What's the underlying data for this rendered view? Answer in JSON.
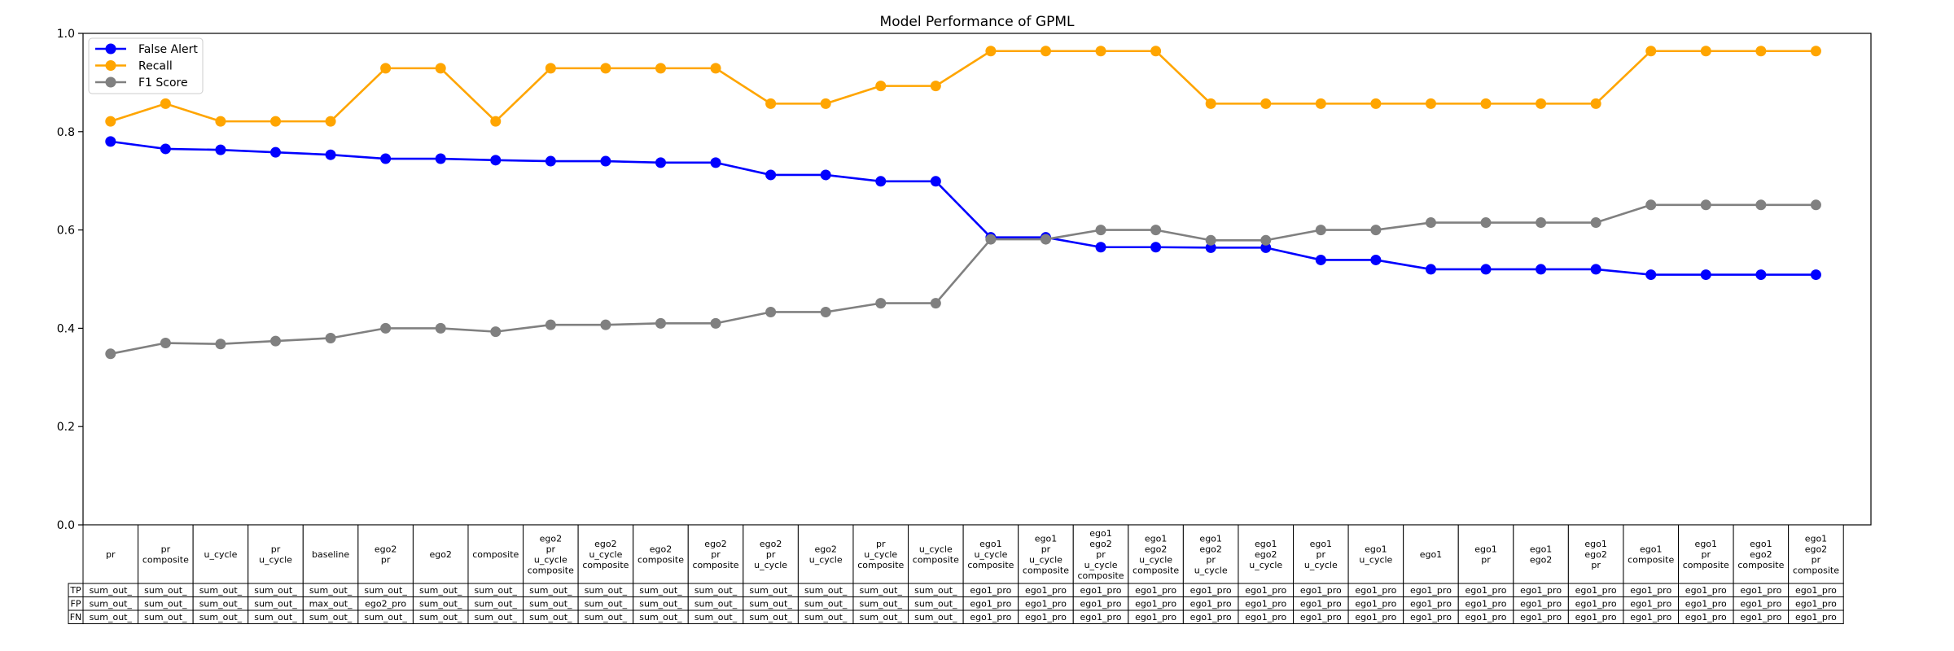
{
  "chart_data": {
    "type": "line",
    "title": "Model Performance of GPML",
    "xlabel": "",
    "ylabel": "",
    "ylim": [
      0.0,
      1.0
    ],
    "yticks": [
      "0.0",
      "0.2",
      "0.4",
      "0.6",
      "0.8",
      "1.0"
    ],
    "grid": false,
    "legend_position": "top-left",
    "categories": [
      [
        "pr"
      ],
      [
        "pr",
        "composite"
      ],
      [
        "u_cycle"
      ],
      [
        "pr",
        "u_cycle"
      ],
      [
        "baseline"
      ],
      [
        "ego2",
        "pr"
      ],
      [
        "ego2"
      ],
      [
        "composite"
      ],
      [
        "ego2",
        "pr",
        "u_cycle",
        "composite"
      ],
      [
        "ego2",
        "u_cycle",
        "composite"
      ],
      [
        "ego2",
        "composite"
      ],
      [
        "ego2",
        "pr",
        "composite"
      ],
      [
        "ego2",
        "pr",
        "u_cycle"
      ],
      [
        "ego2",
        "u_cycle"
      ],
      [
        "pr",
        "u_cycle",
        "composite"
      ],
      [
        "u_cycle",
        "composite"
      ],
      [
        "ego1",
        "u_cycle",
        "composite"
      ],
      [
        "ego1",
        "pr",
        "u_cycle",
        "composite"
      ],
      [
        "ego1",
        "ego2",
        "pr",
        "u_cycle",
        "composite"
      ],
      [
        "ego1",
        "ego2",
        "u_cycle",
        "composite"
      ],
      [
        "ego1",
        "ego2",
        "pr",
        "u_cycle"
      ],
      [
        "ego1",
        "ego2",
        "u_cycle"
      ],
      [
        "ego1",
        "pr",
        "u_cycle"
      ],
      [
        "ego1",
        "u_cycle"
      ],
      [
        "ego1"
      ],
      [
        "ego1",
        "pr"
      ],
      [
        "ego1",
        "ego2"
      ],
      [
        "ego1",
        "ego2",
        "pr"
      ],
      [
        "ego1",
        "composite"
      ],
      [
        "ego1",
        "pr",
        "composite"
      ],
      [
        "ego1",
        "ego2",
        "composite"
      ],
      [
        "ego1",
        "ego2",
        "pr",
        "composite"
      ]
    ],
    "series": [
      {
        "name": "False Alert",
        "color": "#0000ff",
        "values": [
          0.78,
          0.765,
          0.763,
          0.758,
          0.753,
          0.745,
          0.745,
          0.742,
          0.74,
          0.74,
          0.737,
          0.737,
          0.712,
          0.712,
          0.699,
          0.699,
          0.585,
          0.585,
          0.565,
          0.565,
          0.564,
          0.564,
          0.539,
          0.539,
          0.52,
          0.52,
          0.52,
          0.52,
          0.509,
          0.509,
          0.509,
          0.509
        ]
      },
      {
        "name": "Recall",
        "color": "#ffa500",
        "values": [
          0.821,
          0.857,
          0.821,
          0.821,
          0.821,
          0.929,
          0.929,
          0.821,
          0.929,
          0.929,
          0.929,
          0.929,
          0.857,
          0.857,
          0.893,
          0.893,
          0.964,
          0.964,
          0.964,
          0.964,
          0.857,
          0.857,
          0.857,
          0.857,
          0.857,
          0.857,
          0.857,
          0.857,
          0.964,
          0.964,
          0.964,
          0.964
        ]
      },
      {
        "name": "F1 Score",
        "color": "#808080",
        "values": [
          0.348,
          0.37,
          0.368,
          0.374,
          0.38,
          0.4,
          0.4,
          0.393,
          0.407,
          0.407,
          0.41,
          0.41,
          0.433,
          0.433,
          0.451,
          0.451,
          0.581,
          0.581,
          0.6,
          0.6,
          0.579,
          0.579,
          0.6,
          0.6,
          0.615,
          0.615,
          0.615,
          0.615,
          0.651,
          0.651,
          0.651,
          0.651
        ]
      }
    ],
    "table": {
      "row_labels": [
        "TP",
        "FP",
        "FN"
      ],
      "rows": [
        [
          "sum_out_",
          "sum_out_",
          "sum_out_",
          "sum_out_",
          "sum_out_",
          "sum_out_",
          "sum_out_",
          "sum_out_",
          "sum_out_",
          "sum_out_",
          "sum_out_",
          "sum_out_",
          "sum_out_",
          "sum_out_",
          "sum_out_",
          "sum_out_",
          "ego1_pro",
          "ego1_pro",
          "ego1_pro",
          "ego1_pro",
          "ego1_pro",
          "ego1_pro",
          "ego1_pro",
          "ego1_pro",
          "ego1_pro",
          "ego1_pro",
          "ego1_pro",
          "ego1_pro",
          "ego1_pro",
          "ego1_pro",
          "ego1_pro",
          "ego1_pro"
        ],
        [
          "sum_out_",
          "sum_out_",
          "sum_out_",
          "sum_out_",
          "max_out_",
          "ego2_pro",
          "sum_out_",
          "sum_out_",
          "sum_out_",
          "sum_out_",
          "sum_out_",
          "sum_out_",
          "sum_out_",
          "sum_out_",
          "sum_out_",
          "sum_out_",
          "ego1_pro",
          "ego1_pro",
          "ego1_pro",
          "ego1_pro",
          "ego1_pro",
          "ego1_pro",
          "ego1_pro",
          "ego1_pro",
          "ego1_pro",
          "ego1_pro",
          "ego1_pro",
          "ego1_pro",
          "ego1_pro",
          "ego1_pro",
          "ego1_pro",
          "ego1_pro"
        ],
        [
          "sum_out_",
          "sum_out_",
          "sum_out_",
          "sum_out_",
          "sum_out_",
          "sum_out_",
          "sum_out_",
          "sum_out_",
          "sum_out_",
          "sum_out_",
          "sum_out_",
          "sum_out_",
          "sum_out_",
          "sum_out_",
          "sum_out_",
          "sum_out_",
          "ego1_pro",
          "ego1_pro",
          "ego1_pro",
          "ego1_pro",
          "ego1_pro",
          "ego1_pro",
          "ego1_pro",
          "ego1_pro",
          "ego1_pro",
          "ego1_pro",
          "ego1_pro",
          "ego1_pro",
          "ego1_pro",
          "ego1_pro",
          "ego1_pro",
          "ego1_pro"
        ]
      ]
    }
  }
}
